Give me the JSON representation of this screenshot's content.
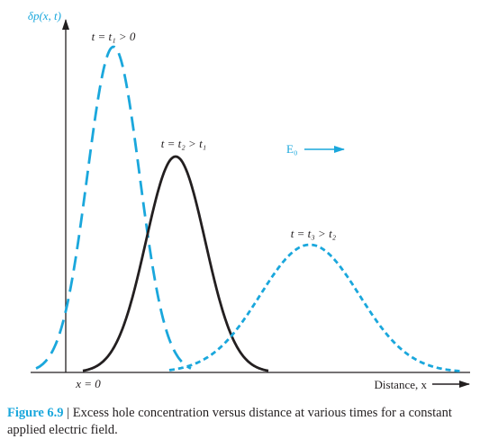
{
  "figure": {
    "axis_labels": {
      "y_label": "δp(x, t)",
      "x_label": "Distance, x",
      "origin_label": "x = 0"
    },
    "curve_labels": {
      "t1": "t = t₁ > 0",
      "t2": "t = t₂ > t₁",
      "t3": "t = t₃ > t₂"
    },
    "field_label": "E₀",
    "colors": {
      "blue": "#1aa7dc",
      "black": "#231f20"
    },
    "curve_styles": {
      "t1": "long-dashed blue",
      "t2": "solid black",
      "t3": "short-dashed blue"
    }
  },
  "caption": {
    "lead": "Figure 6.9",
    "separator": " | ",
    "text": "Excess hole concentration versus distance at various times for a constant applied electric field."
  }
}
